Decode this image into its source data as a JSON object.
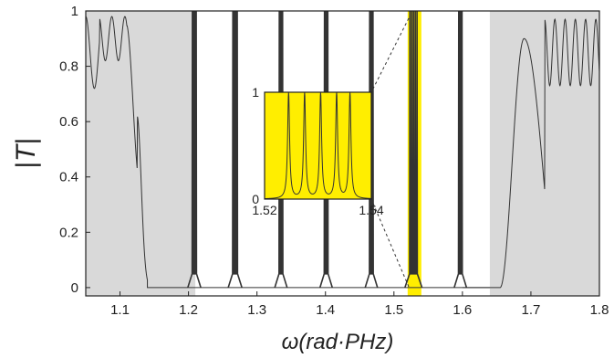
{
  "chart_data": {
    "type": "line",
    "xlabel": "ω(rad·PHz)",
    "ylabel": "|T|",
    "xlim": [
      1.05,
      1.8
    ],
    "ylim": [
      -0.03,
      1.0
    ],
    "x_ticks": [
      "1.1",
      "1.2",
      "1.3",
      "1.4",
      "1.5",
      "1.6",
      "1.7",
      "1.8"
    ],
    "y_ticks": [
      "0",
      "0.2",
      "0.4",
      "0.6",
      "0.8",
      "1"
    ],
    "shaded_regions": [
      {
        "x0": 1.05,
        "x1": 1.21,
        "color": "#d9d9d9"
      },
      {
        "x0": 1.64,
        "x1": 1.8,
        "color": "#d9d9d9"
      }
    ],
    "highlight_region": {
      "x0": 1.52,
      "x1": 1.54,
      "color": "#ffee00"
    },
    "peak_groups": [
      {
        "x_range": [
          1.205,
          1.212
        ]
      },
      {
        "x_range": [
          1.264,
          1.272
        ]
      },
      {
        "x_range": [
          1.332,
          1.338
        ]
      },
      {
        "x_range": [
          1.398,
          1.404
        ]
      },
      {
        "x_range": [
          1.464,
          1.47
        ]
      },
      {
        "x_range": [
          1.522,
          1.535
        ]
      },
      {
        "x_range": [
          1.594,
          1.6
        ]
      }
    ],
    "inset": {
      "xlim": [
        1.52,
        1.54
      ],
      "ylim": [
        0,
        1
      ],
      "x_ticks": [
        "1.52",
        "1.54"
      ],
      "y_ticks": [
        "0",
        "1"
      ],
      "background": "#ffee00",
      "peaks_x": [
        1.5245,
        1.5275,
        1.5305,
        1.5335,
        1.536
      ]
    }
  }
}
